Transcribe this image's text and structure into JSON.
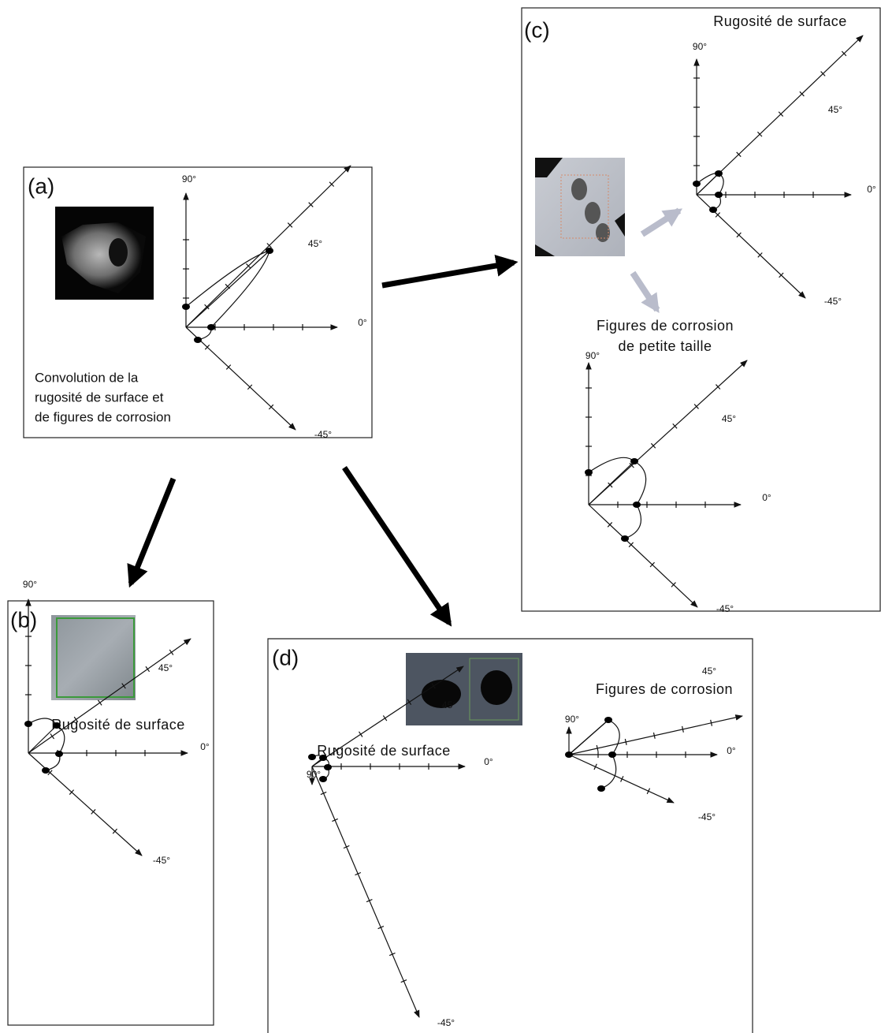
{
  "panels": [
    {
      "label": "(a)",
      "caption": [
        "Convolution de la",
        "rugosité de surface et",
        "de figures de corrosion"
      ],
      "diagrams": [
        {
          "axis_labels": {
            "up": "90°",
            "diag_up": "45°",
            "right": "0°",
            "diag_down": "-45°"
          }
        }
      ]
    },
    {
      "label": "(b)",
      "diagrams": [
        {
          "title": [
            "Rugosité de surface"
          ],
          "axis_labels": {
            "up": "90°",
            "diag_up": "45°",
            "right": "0°",
            "diag_down": "-45°"
          }
        }
      ]
    },
    {
      "label": "(c)",
      "diagrams": [
        {
          "title": [
            "Rugosité de surface"
          ],
          "axis_labels": {
            "up": "90°",
            "diag_up": "45°",
            "right": "0°",
            "diag_down": "-45°"
          }
        },
        {
          "title": [
            "Figures de corrosion",
            "de petite taille"
          ],
          "axis_labels": {
            "up": "90°",
            "diag_up": "45°",
            "right": "0°",
            "diag_down": "-45°"
          }
        }
      ]
    },
    {
      "label": "(d)",
      "diagrams": [
        {
          "title": [
            "Rugosité de surface"
          ],
          "axis_labels": {
            "up": "90°",
            "diag_up": "45°",
            "right": "0°",
            "diag_down": "-45°"
          }
        },
        {
          "title": [
            "Figures de corrosion"
          ],
          "axis_labels": {
            "up": "90°",
            "diag_up": "45°",
            "right": "0°",
            "diag_down": "-45°"
          }
        }
      ]
    }
  ]
}
